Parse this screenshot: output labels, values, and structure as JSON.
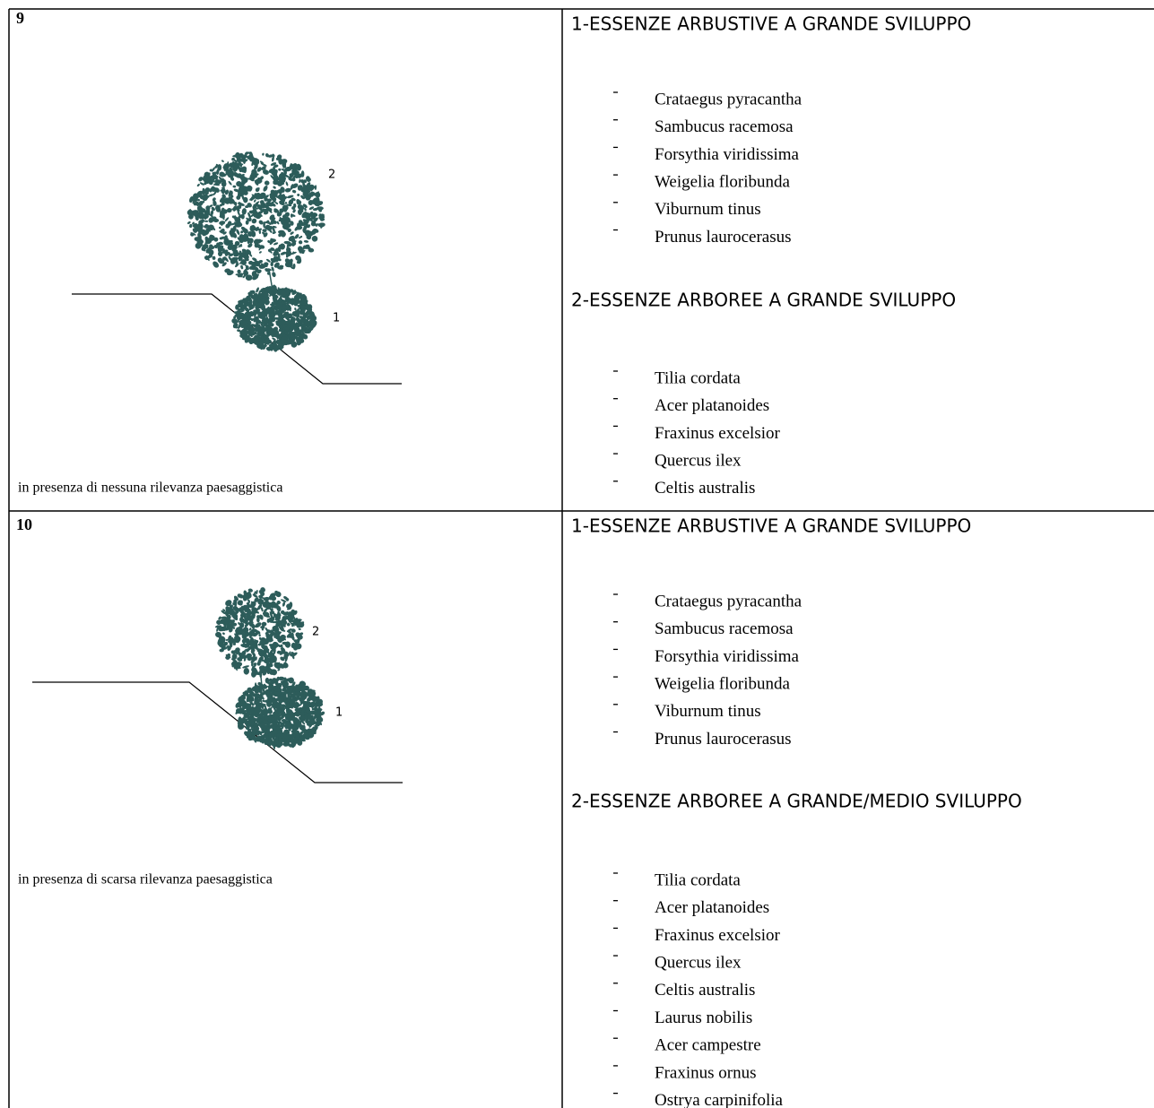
{
  "rows": [
    {
      "number": "9",
      "caption": "in presenza di nessuna rilevanza paesaggistica",
      "labels": [
        "1",
        "2"
      ],
      "sections": [
        {
          "title": "1-ESSENZE ARBUSTIVE A GRANDE SVILUPPO",
          "items": [
            "Crataegus pyracantha",
            "Sambucus racemosa",
            "Forsythia viridissima",
            "Weigelia floribunda",
            "Viburnum tinus",
            "Prunus laurocerasus"
          ]
        },
        {
          "title": "2-ESSENZE ARBOREE A GRANDE SVILUPPO",
          "items": [
            "Tilia cordata",
            "Acer platanoides",
            "Fraxinus excelsior",
            "Quercus ilex",
            "Celtis australis"
          ]
        }
      ]
    },
    {
      "number": "10",
      "caption": "in presenza di scarsa rilevanza paesaggistica",
      "labels": [
        "1",
        "2"
      ],
      "sections": [
        {
          "title": "1-ESSENZE ARBUSTIVE A GRANDE SVILUPPO",
          "items": [
            "Crataegus pyracantha",
            "Sambucus racemosa",
            "Forsythia viridissima",
            "Weigelia floribunda",
            "Viburnum tinus",
            "Prunus laurocerasus"
          ]
        },
        {
          "title": "2-ESSENZE ARBOREE A GRANDE/MEDIO SVILUPPO",
          "items": [
            "Tilia cordata",
            "Acer platanoides",
            "Fraxinus excelsior",
            "Quercus ilex",
            "Celtis australis",
            "Laurus nobilis",
            "Acer campestre",
            "Fraxinus ornus",
            "Ostrya carpinifolia"
          ]
        }
      ]
    }
  ]
}
